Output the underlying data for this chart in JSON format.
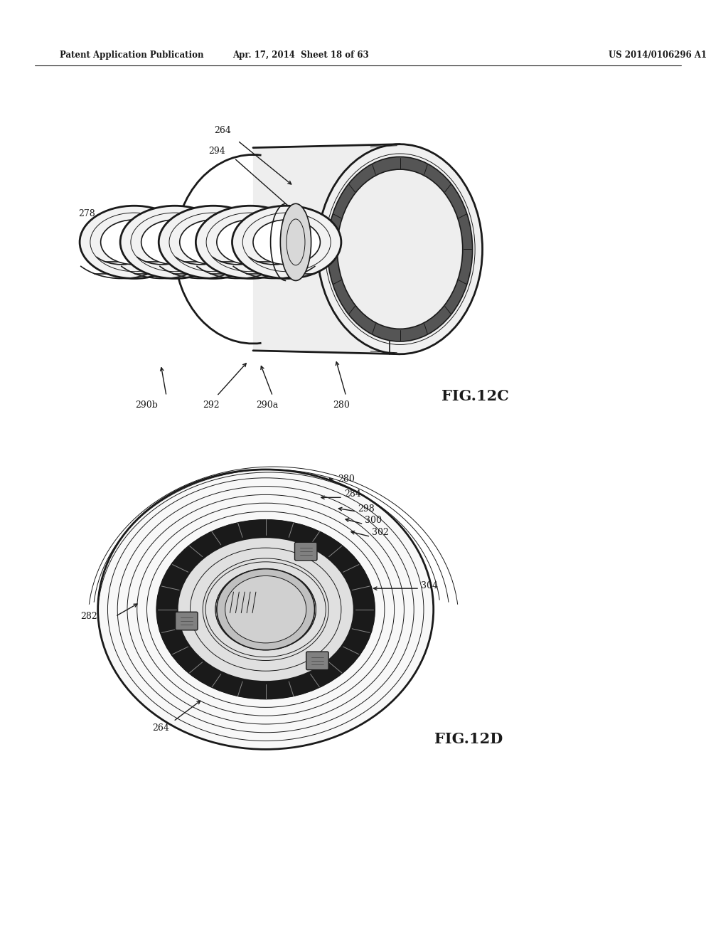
{
  "background_color": "#ffffff",
  "header_left": "Patent Application Publication",
  "header_center": "Apr. 17, 2014  Sheet 18 of 63",
  "header_right": "US 2014/0106296 A1",
  "fig_label_12c": "FIG.12C",
  "fig_label_12d": "FIG.12D",
  "text_color": "#1a1a1a",
  "line_color": "#1a1a1a",
  "figure_width": 10.24,
  "figure_height": 13.2,
  "dpi": 100
}
